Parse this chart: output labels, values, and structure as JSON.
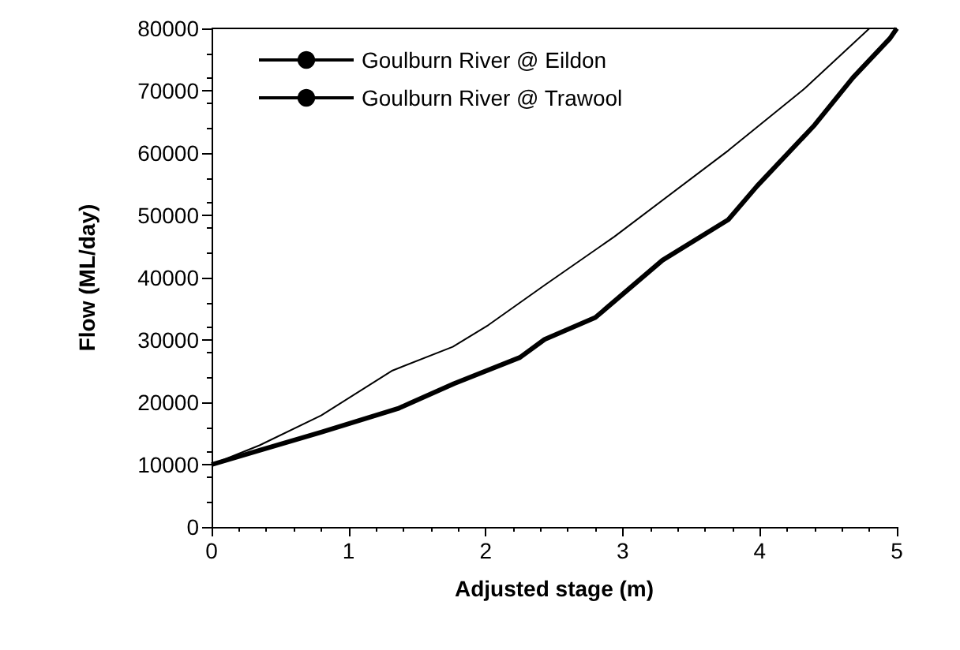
{
  "chart_data": {
    "type": "line",
    "xlabel": "Adjusted stage (m)",
    "ylabel": "Flow (ML/day)",
    "xlim": [
      0,
      5
    ],
    "xticks": [
      0,
      1,
      2,
      3,
      4,
      5
    ],
    "ylim": [
      0,
      80000
    ],
    "yticks": [
      0,
      10000,
      20000,
      30000,
      40000,
      50000,
      60000,
      70000,
      80000
    ],
    "grid": false,
    "legend": "top left",
    "marker": "none",
    "line_style": "solid",
    "series": [
      {
        "name": "Goulburn River @ Eildon",
        "color": "#000000",
        "x": [
          0,
          0.35,
          0.8,
          1.32,
          1.76,
          2.02,
          2.43,
          2.94,
          3.77,
          4.33,
          4.8
        ],
        "values": [
          10000,
          13100,
          17900,
          25100,
          28900,
          32400,
          38800,
          46600,
          60400,
          70400,
          80000
        ]
      },
      {
        "name": "Goulburn River @ Trawool",
        "color": "#000000",
        "x": [
          0,
          0.35,
          0.8,
          1.36,
          1.77,
          2.25,
          2.43,
          2.8,
          3.29,
          3.77,
          3.98,
          4.4,
          4.68,
          4.95,
          5
        ],
        "values": [
          10000,
          12300,
          15200,
          19000,
          23000,
          27200,
          30100,
          33600,
          42800,
          49300,
          54700,
          64500,
          72100,
          78400,
          80000
        ]
      }
    ]
  }
}
